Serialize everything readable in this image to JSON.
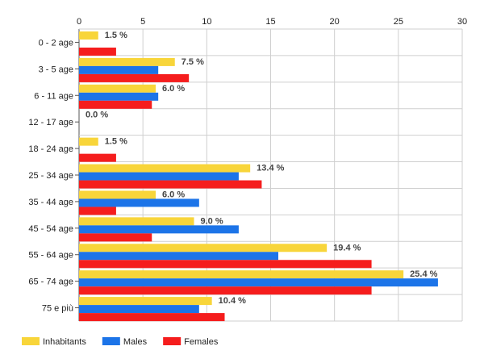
{
  "chart_data": {
    "type": "bar",
    "orientation": "horizontal",
    "categories": [
      "0 - 2 age",
      "3 - 5 age",
      "6 - 11 age",
      "12 - 17 age",
      "18 - 24 age",
      "25 - 34 age",
      "35 - 44 age",
      "45 - 54 age",
      "55 - 64 age",
      "65 - 74 age",
      "75 e più"
    ],
    "series": [
      {
        "name": "Inhabitants",
        "color": "#f8d53a",
        "values": [
          1.5,
          7.5,
          6.0,
          0.0,
          1.5,
          13.4,
          6.0,
          9.0,
          19.4,
          25.4,
          10.4
        ]
      },
      {
        "name": "Males",
        "color": "#1c74e8",
        "values": [
          0,
          6.2,
          6.2,
          0,
          0,
          12.5,
          9.4,
          12.5,
          15.6,
          28.1,
          9.4
        ]
      },
      {
        "name": "Females",
        "color": "#f51d1d",
        "values": [
          2.9,
          8.6,
          5.7,
          0,
          2.9,
          14.3,
          2.9,
          5.7,
          22.9,
          22.9,
          11.4
        ]
      }
    ],
    "data_labels": [
      "1.5 %",
      "7.5 %",
      "6.0 %",
      "0.0 %",
      "1.5 %",
      "13.4 %",
      "6.0 %",
      "9.0 %",
      "19.4 %",
      "25.4 %",
      "10.4 %"
    ],
    "x_ticks": [
      0,
      5,
      10,
      15,
      20,
      25,
      30
    ],
    "xlim": [
      0,
      30
    ],
    "grid": true,
    "legend_position": "bottom-left"
  }
}
